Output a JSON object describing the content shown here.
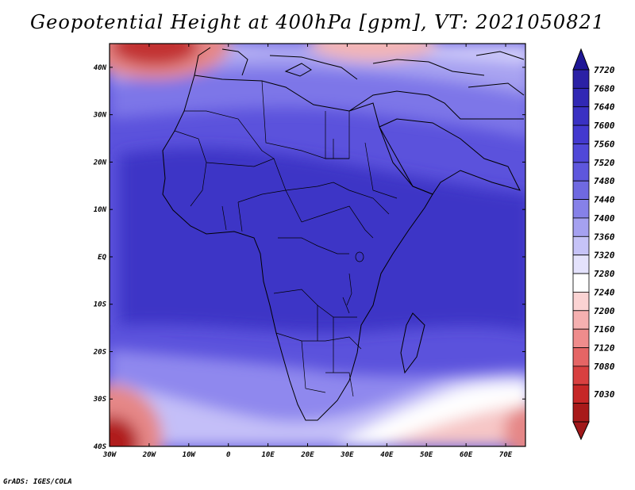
{
  "title": "Geopotential Height at 400hPa [gpm], VT: 2021050821",
  "credit": "GrADS: IGES/COLA",
  "map": {
    "region": "Africa",
    "lon_range": [
      -30,
      75
    ],
    "lat_range": [
      -40,
      45
    ],
    "lon_labels": [
      "30W",
      "20W",
      "10W",
      "0",
      "10E",
      "20E",
      "30E",
      "40E",
      "50E",
      "60E",
      "70E"
    ],
    "lat_labels": [
      "40N",
      "30N",
      "20N",
      "10N",
      "EQ",
      "10S",
      "20S",
      "30S",
      "40S"
    ],
    "field_colors": {
      "deep_blue": "#3d35c6",
      "mid_blue": "#5b52dc",
      "light_blue": "#8f88ee",
      "pale_blue": "#d6d2fb",
      "white": "#ffffff",
      "pink": "#f6c6c6",
      "red": "#e06a6a",
      "dark_red": "#b01e1e"
    }
  },
  "colorbar": {
    "levels": [
      "7720",
      "7680",
      "7640",
      "7600",
      "7560",
      "7520",
      "7480",
      "7440",
      "7400",
      "7360",
      "7320",
      "7280",
      "7240",
      "7200",
      "7160",
      "7120",
      "7080",
      "7030"
    ],
    "colors": [
      "#2b21a5",
      "#3128b4",
      "#3a31c3",
      "#4339cf",
      "#5048d8",
      "#5e57dd",
      "#6f69e1",
      "#8681e8",
      "#a5a1f0",
      "#c6c3f7",
      "#e4e2fc",
      "#ffffff",
      "#fbd3d3",
      "#f5b0b0",
      "#ef8c8c",
      "#e56565",
      "#d84040",
      "#c62727",
      "#a81a1a"
    ],
    "top_arrow_color": "#1f1796",
    "bottom_arrow_color": "#a0181a"
  }
}
